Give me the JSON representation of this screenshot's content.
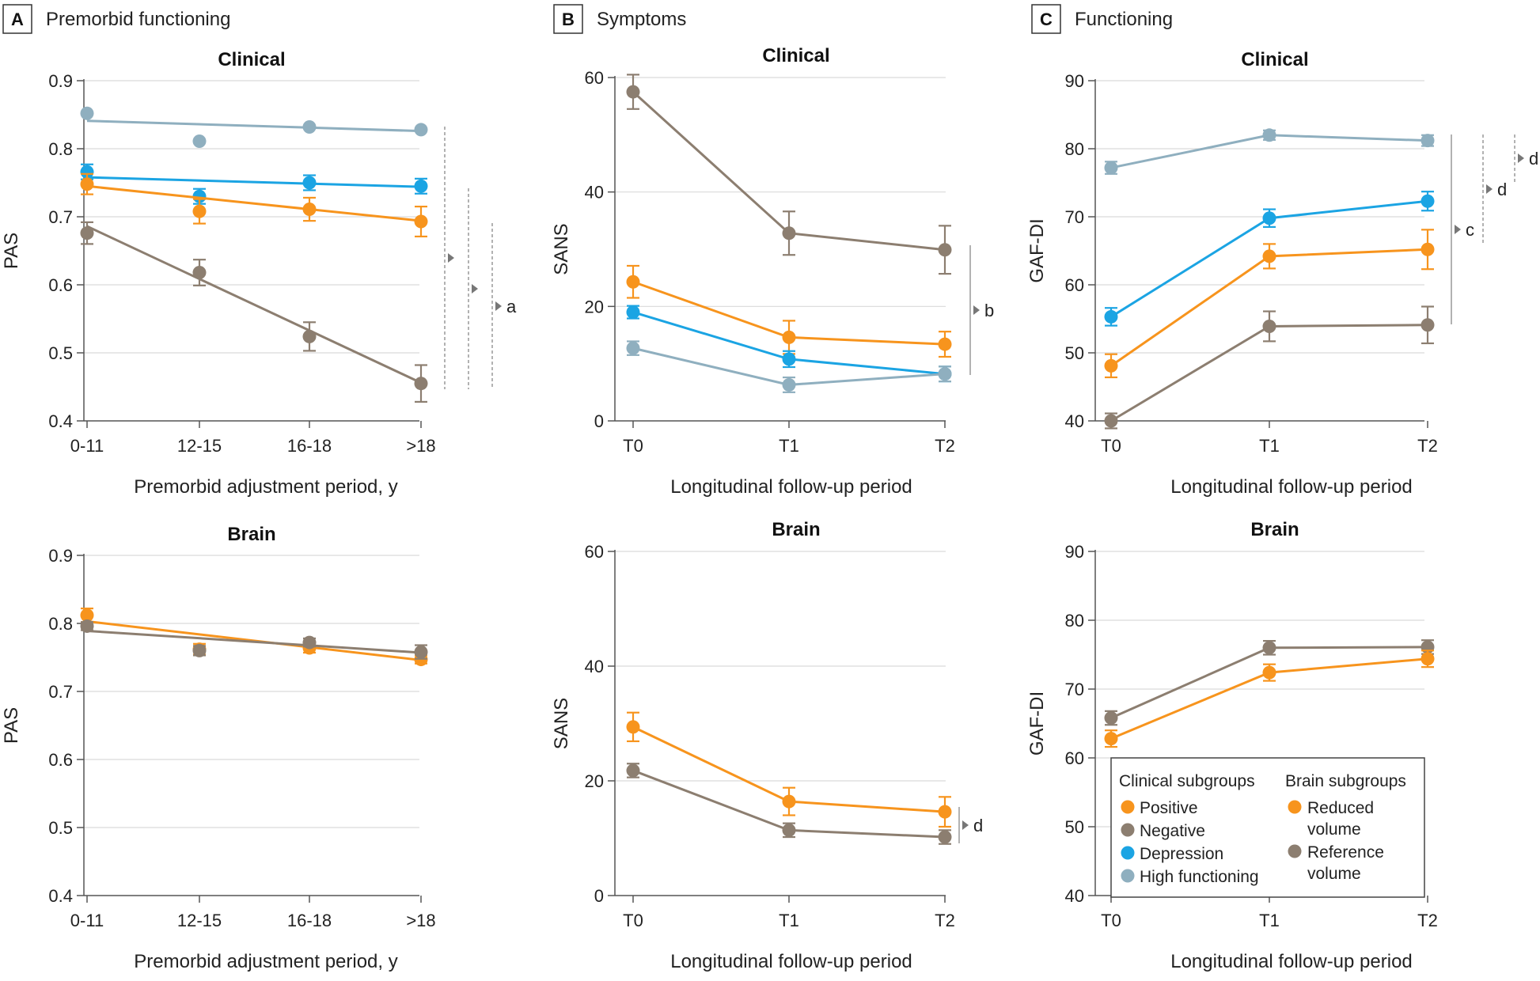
{
  "colors": {
    "positive": "#F7941D",
    "negative": "#8C7E70",
    "depression": "#1BA4E3",
    "high_functioning": "#8FAFBF",
    "reduced_volume": "#F7941D",
    "reference_volume": "#8C7E70"
  },
  "panels": [
    {
      "letter": "A",
      "title": "Premorbid functioning"
    },
    {
      "letter": "B",
      "title": "Symptoms"
    },
    {
      "letter": "C",
      "title": "Functioning"
    }
  ],
  "legend": {
    "clinical_header": "Clinical subgroups",
    "brain_header": "Brain subgroups",
    "clinical_items": [
      {
        "label": "Positive",
        "color_key": "positive"
      },
      {
        "label": "Negative",
        "color_key": "negative"
      },
      {
        "label": "Depression",
        "color_key": "depression"
      },
      {
        "label": "High functioning",
        "color_key": "high_functioning"
      }
    ],
    "brain_items": [
      {
        "label_line1": "Reduced",
        "label_line2": "volume",
        "color_key": "reduced_volume"
      },
      {
        "label_line1": "Reference",
        "label_line2": "volume",
        "color_key": "reference_volume"
      }
    ]
  },
  "chart_data": [
    {
      "id": "A-clinical",
      "type": "line",
      "title": "Clinical",
      "ylabel": "PAS",
      "xlabel": "Premorbid adjustment period, y",
      "categories": [
        "0-11",
        "12-15",
        "16-18",
        ">18"
      ],
      "ylim": [
        0.4,
        0.9
      ],
      "yticks": [
        0.4,
        0.5,
        0.6,
        0.7,
        0.8,
        0.9
      ],
      "ytick_labels": [
        "0.4",
        "0.5",
        "0.6",
        "0.7",
        "0.8",
        "0.9"
      ],
      "series": [
        {
          "name": "High functioning",
          "color_key": "high_functioning",
          "values": [
            0.852,
            0.811,
            0.832,
            0.828
          ],
          "errors": [
            null,
            null,
            null,
            null
          ],
          "fit": [
            0.841,
            0.826
          ]
        },
        {
          "name": "Depression",
          "color_key": "depression",
          "values": [
            0.766,
            0.73,
            0.75,
            0.745
          ],
          "errors": [
            0.011,
            0.011,
            0.011,
            0.011
          ],
          "fit": [
            0.758,
            0.744
          ]
        },
        {
          "name": "Positive",
          "color_key": "positive",
          "values": [
            0.748,
            0.708,
            0.711,
            0.693
          ],
          "errors": [
            0.015,
            0.018,
            0.017,
            0.022
          ],
          "fit": [
            0.745,
            0.694
          ]
        },
        {
          "name": "Negative",
          "color_key": "negative",
          "values": [
            0.676,
            0.618,
            0.524,
            0.455
          ],
          "errors": [
            0.016,
            0.019,
            0.021,
            0.027
          ],
          "fit": [
            0.686,
            0.456
          ]
        }
      ],
      "annotations": [
        {
          "label": "a"
        }
      ]
    },
    {
      "id": "B-clinical",
      "type": "line",
      "title": "Clinical",
      "ylabel": "SANS",
      "xlabel": "Longitudinal follow-up period",
      "categories": [
        "T0",
        "T1",
        "T2"
      ],
      "ylim": [
        0,
        60
      ],
      "yticks": [
        0,
        20,
        40,
        60
      ],
      "ytick_labels": [
        "0",
        "20",
        "40",
        "60"
      ],
      "series": [
        {
          "name": "Negative",
          "color_key": "negative",
          "values": [
            57.5,
            32.8,
            29.9
          ],
          "errors": [
            3.0,
            3.8,
            4.2
          ]
        },
        {
          "name": "Positive",
          "color_key": "positive",
          "values": [
            24.3,
            14.6,
            13.4
          ],
          "errors": [
            2.8,
            2.9,
            2.2
          ]
        },
        {
          "name": "Depression",
          "color_key": "depression",
          "values": [
            19.0,
            10.8,
            8.2
          ],
          "errors": [
            1.1,
            1.4,
            1.3
          ]
        },
        {
          "name": "High functioning",
          "color_key": "high_functioning",
          "values": [
            12.7,
            6.3,
            8.2
          ],
          "errors": [
            1.2,
            1.3,
            1.3
          ]
        }
      ],
      "annotations": [
        {
          "label": "b"
        }
      ]
    },
    {
      "id": "C-clinical",
      "type": "line",
      "title": "Clinical",
      "ylabel": "GAF-DI",
      "xlabel": "Longitudinal follow-up period",
      "categories": [
        "T0",
        "T1",
        "T2"
      ],
      "ylim": [
        40,
        90
      ],
      "yticks": [
        40,
        50,
        60,
        70,
        80,
        90
      ],
      "ytick_labels": [
        "40",
        "50",
        "60",
        "70",
        "80",
        "90"
      ],
      "series": [
        {
          "name": "High functioning",
          "color_key": "high_functioning",
          "values": [
            77.2,
            82.0,
            81.2
          ],
          "errors": [
            0.9,
            0.7,
            0.8
          ]
        },
        {
          "name": "Depression",
          "color_key": "depression",
          "values": [
            55.3,
            69.8,
            72.3
          ],
          "errors": [
            1.3,
            1.3,
            1.4
          ]
        },
        {
          "name": "Positive",
          "color_key": "positive",
          "values": [
            48.1,
            64.2,
            65.2
          ],
          "errors": [
            1.7,
            1.8,
            2.9
          ]
        },
        {
          "name": "Negative",
          "color_key": "negative",
          "values": [
            40.0,
            53.9,
            54.1
          ],
          "errors": [
            1.1,
            2.2,
            2.7
          ]
        }
      ],
      "annotations": [
        {
          "label": "c"
        },
        {
          "label": "d"
        },
        {
          "label": "d"
        }
      ]
    },
    {
      "id": "A-brain",
      "type": "line",
      "title": "Brain",
      "ylabel": "PAS",
      "xlabel": "Premorbid adjustment period, y",
      "categories": [
        "0-11",
        "12-15",
        "16-18",
        ">18"
      ],
      "ylim": [
        0.4,
        0.9
      ],
      "yticks": [
        0.4,
        0.5,
        0.6,
        0.7,
        0.8,
        0.9
      ],
      "ytick_labels": [
        "0.4",
        "0.5",
        "0.6",
        "0.7",
        "0.8",
        "0.9"
      ],
      "series": [
        {
          "name": "Reduced volume",
          "color_key": "reduced_volume",
          "values": [
            0.812,
            0.762,
            0.764,
            0.747
          ],
          "errors": [
            0.01,
            0.008,
            0.007,
            0.006
          ],
          "fit": [
            0.803,
            0.746
          ]
        },
        {
          "name": "Reference volume",
          "color_key": "reference_volume",
          "values": [
            0.796,
            0.76,
            0.772,
            0.758
          ],
          "errors": [
            0.006,
            0.007,
            0.006,
            0.01
          ],
          "fit": [
            0.789,
            0.757
          ]
        }
      ],
      "annotations": []
    },
    {
      "id": "B-brain",
      "type": "line",
      "title": "Brain",
      "ylabel": "SANS",
      "xlabel": "Longitudinal follow-up period",
      "categories": [
        "T0",
        "T1",
        "T2"
      ],
      "ylim": [
        0,
        60
      ],
      "yticks": [
        0,
        20,
        40,
        60
      ],
      "ytick_labels": [
        "0",
        "20",
        "40",
        "60"
      ],
      "series": [
        {
          "name": "Reduced volume",
          "color_key": "reduced_volume",
          "values": [
            29.4,
            16.4,
            14.6
          ],
          "errors": [
            2.5,
            2.4,
            2.6
          ]
        },
        {
          "name": "Reference volume",
          "color_key": "reference_volume",
          "values": [
            21.8,
            11.4,
            10.2
          ],
          "errors": [
            1.2,
            1.2,
            1.2
          ]
        }
      ],
      "annotations": [
        {
          "label": "d"
        }
      ]
    },
    {
      "id": "C-brain",
      "type": "line",
      "title": "Brain",
      "ylabel": "GAF-DI",
      "xlabel": "Longitudinal follow-up period",
      "categories": [
        "T0",
        "T1",
        "T2"
      ],
      "ylim": [
        40,
        90
      ],
      "yticks": [
        40,
        50,
        60,
        70,
        80,
        90
      ],
      "ytick_labels": [
        "40",
        "50",
        "60",
        "70",
        "80",
        "90"
      ],
      "series": [
        {
          "name": "Reference volume",
          "color_key": "reference_volume",
          "values": [
            65.8,
            76.0,
            76.1
          ],
          "errors": [
            1.0,
            1.0,
            1.0
          ]
        },
        {
          "name": "Reduced volume",
          "color_key": "reduced_volume",
          "values": [
            62.8,
            72.4,
            74.4
          ],
          "errors": [
            1.2,
            1.2,
            1.2
          ]
        }
      ],
      "annotations": []
    }
  ]
}
